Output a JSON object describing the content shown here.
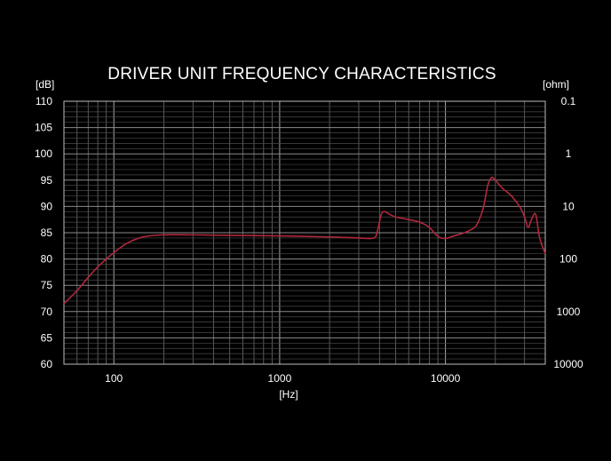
{
  "chart_data": {
    "type": "line",
    "title": "DRIVER UNIT FREQUENCY CHARACTERISTICS",
    "ylabel_left": "[dB]",
    "ylabel_right": "[ohm]",
    "xlabel": "[Hz]",
    "x_scale": "log",
    "xlim": [
      50,
      40000
    ],
    "ylim": [
      60,
      110
    ],
    "x_tick_labels": [
      "100",
      "1000",
      "10000"
    ],
    "x_ticks": [
      100,
      1000,
      10000
    ],
    "y_left_tick_labels": [
      "60",
      "65",
      "70",
      "75",
      "80",
      "85",
      "90",
      "95",
      "100",
      "105",
      "110"
    ],
    "y_left_ticks": [
      60,
      65,
      70,
      75,
      80,
      85,
      90,
      95,
      100,
      105,
      110
    ],
    "y_right_tick_labels": [
      "10000",
      "1000",
      "100",
      "10",
      "1",
      "0.1"
    ],
    "y_right_ticks_db": [
      60,
      70,
      80,
      90,
      100,
      110
    ],
    "grid": true,
    "colors": {
      "background": "#000000",
      "grid": "#6e6e6e",
      "line": "#b0283c",
      "text": "#ffffff"
    },
    "series": [
      {
        "x": [
          50,
          60,
          70,
          80,
          90,
          100,
          120,
          150,
          200,
          300,
          500,
          1000,
          2000,
          3000,
          3700,
          3900,
          4100,
          4300,
          4600,
          5000,
          6000,
          7000,
          8000,
          9000,
          10000,
          11000,
          13000,
          15000,
          16000,
          17000,
          18000,
          19000,
          20000,
          22000,
          25000,
          28000,
          30000,
          31500,
          33000,
          35000,
          37000,
          40000
        ],
        "y": [
          71.5,
          74.0,
          76.5,
          78.5,
          80.0,
          81.2,
          83.0,
          84.2,
          84.6,
          84.6,
          84.5,
          84.4,
          84.2,
          84.0,
          84.0,
          85.5,
          88.5,
          89.0,
          88.5,
          88.0,
          87.5,
          87.0,
          86.0,
          84.3,
          83.9,
          84.3,
          85.0,
          86.0,
          87.5,
          90.0,
          94.0,
          95.5,
          95.0,
          93.5,
          92.0,
          90.0,
          88.0,
          86.0,
          87.5,
          88.5,
          84.0,
          81.0
        ]
      }
    ]
  }
}
